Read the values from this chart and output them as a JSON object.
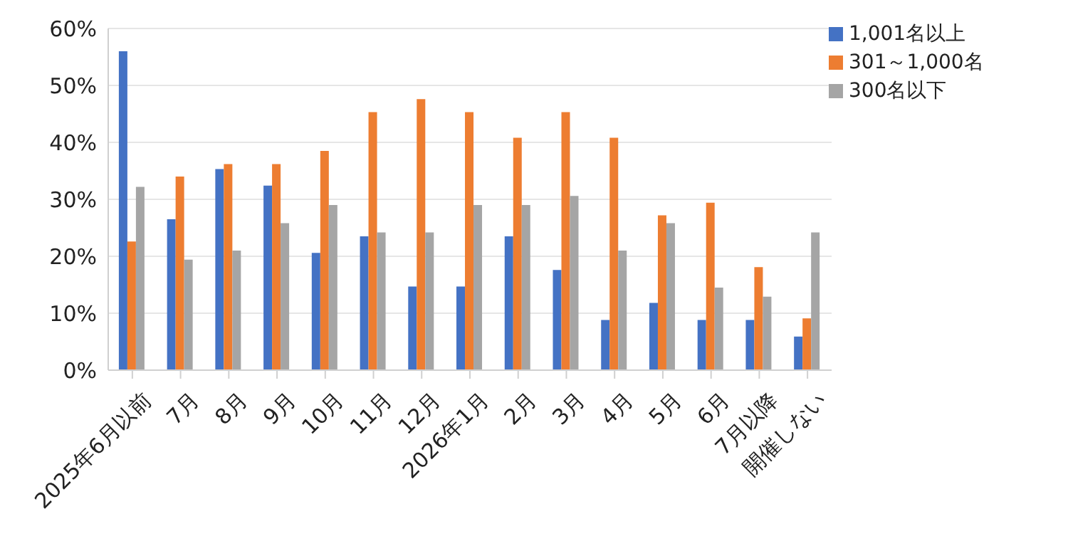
{
  "chart_data": {
    "type": "bar",
    "categories": [
      "2025年6月以前",
      "7月",
      "8月",
      "9月",
      "10月",
      "11月",
      "12月",
      "2026年1月",
      "2月",
      "3月",
      "4月",
      "5月",
      "6月",
      "7月以降",
      "開催しない"
    ],
    "series": [
      {
        "name": "1,001名以上",
        "color": "#4472c4",
        "values": [
          56,
          26.5,
          35.3,
          32.4,
          20.6,
          23.5,
          14.7,
          14.7,
          23.5,
          17.6,
          8.8,
          11.8,
          8.8,
          8.8,
          5.9
        ]
      },
      {
        "name": "301～1,000名",
        "color": "#ed7d31",
        "values": [
          22.6,
          34,
          36.2,
          36.2,
          38.5,
          45.3,
          47.6,
          45.3,
          40.8,
          45.3,
          40.8,
          27.2,
          29.4,
          18.1,
          9.1
        ]
      },
      {
        "name": "300名以下",
        "color": "#a5a5a5",
        "values": [
          32.2,
          19.4,
          21,
          25.8,
          29,
          24.2,
          24.2,
          29,
          29,
          30.6,
          21,
          25.8,
          14.5,
          12.9,
          24.2
        ]
      }
    ],
    "ylim": [
      0,
      60
    ],
    "yticks": [
      {
        "value": 0,
        "label": "0%"
      },
      {
        "value": 10,
        "label": "10%"
      },
      {
        "value": 20,
        "label": "20%"
      },
      {
        "value": 30,
        "label": "30%"
      },
      {
        "value": 40,
        "label": "40%"
      },
      {
        "value": 50,
        "label": "50%"
      },
      {
        "value": 60,
        "label": "60%"
      }
    ],
    "grid": "y",
    "legend": "top right"
  }
}
